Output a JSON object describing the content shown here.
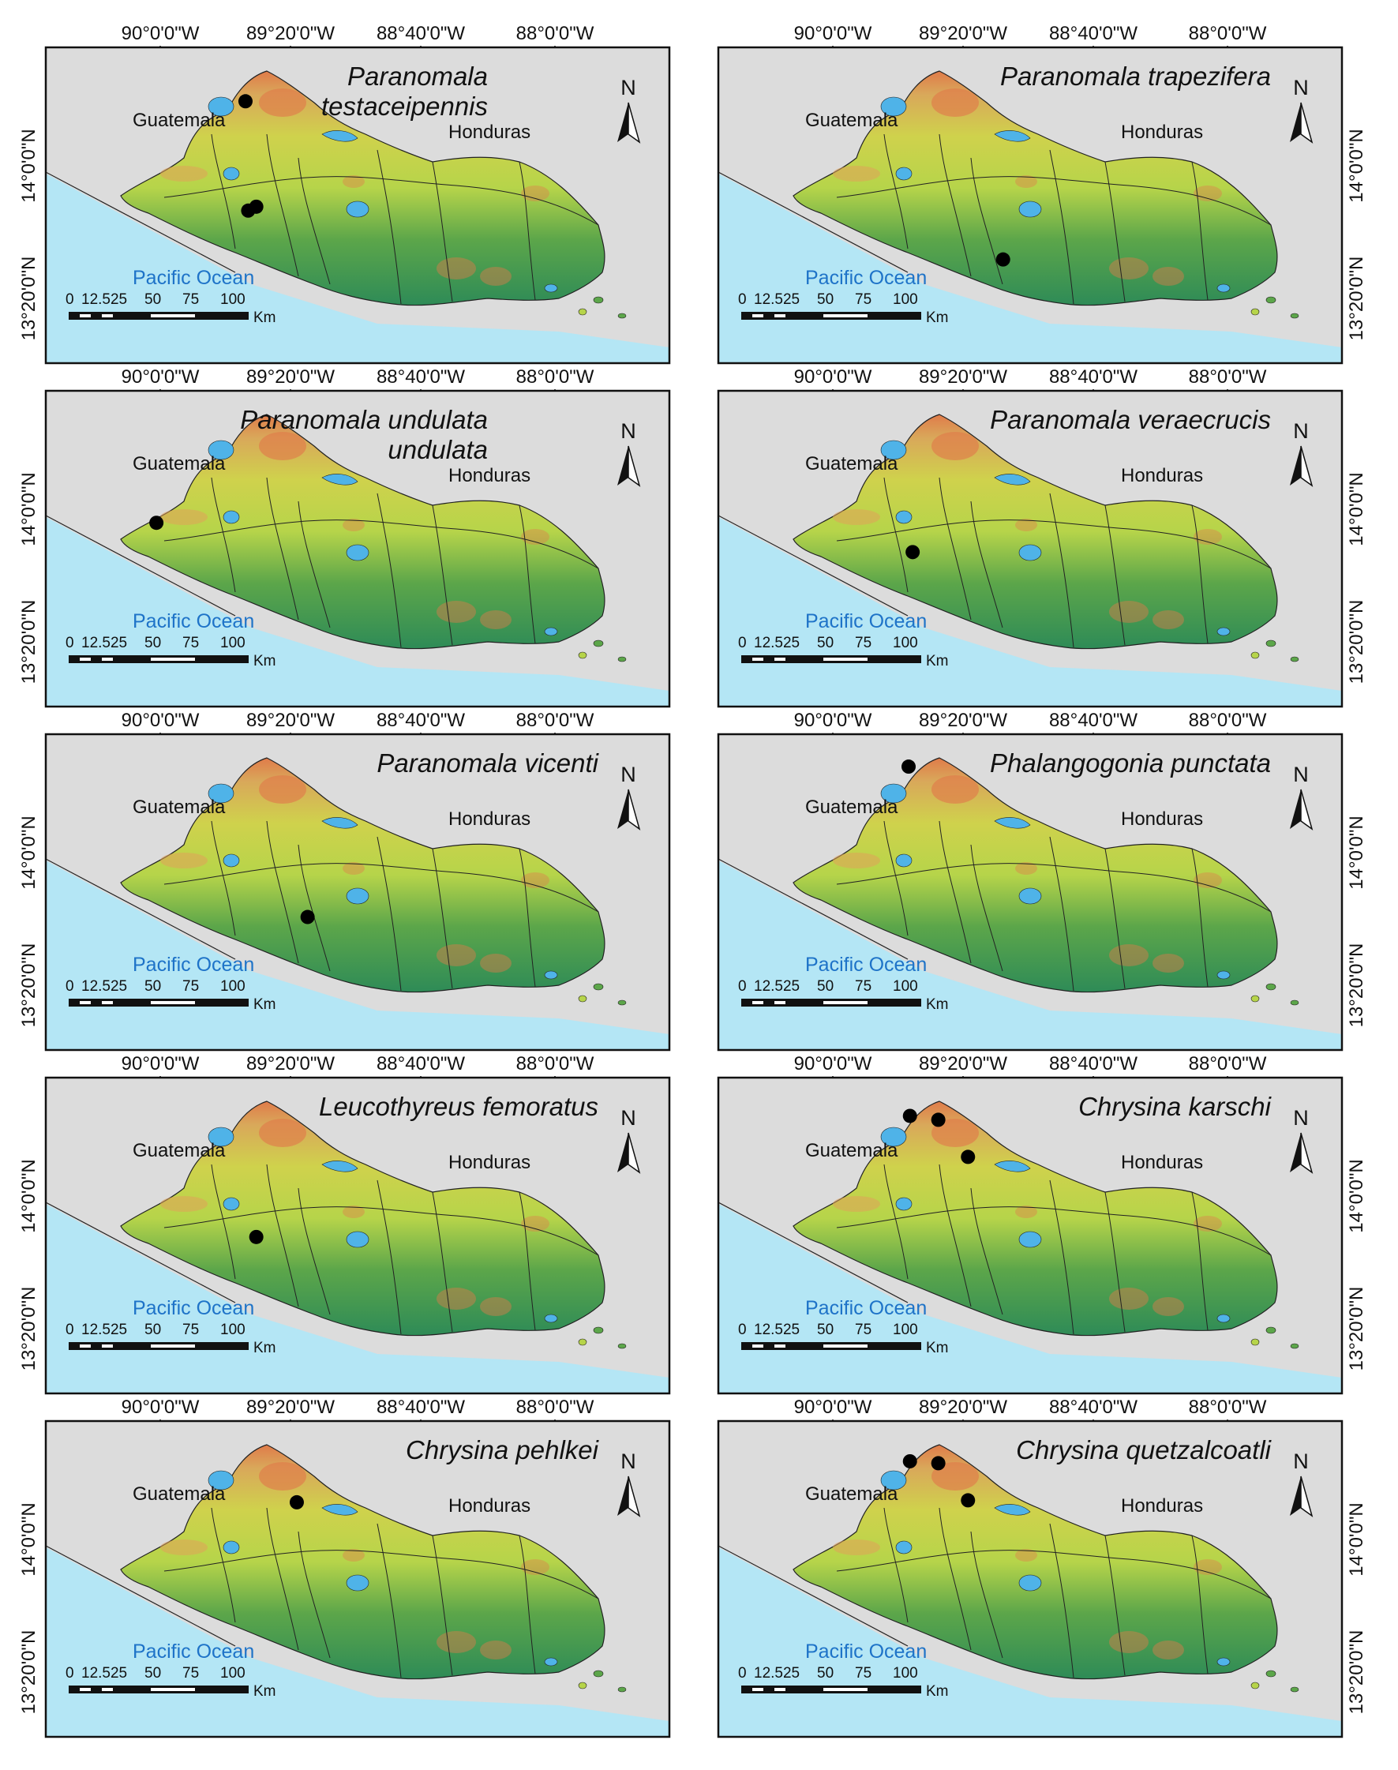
{
  "figure": {
    "lon_ticks": [
      "90°0'0\"W",
      "89°20'0\"W",
      "88°40'0\"W",
      "88°0'0\"W"
    ],
    "lat_ticks": [
      "14°0'0\"N",
      "13°20'0\"N"
    ],
    "labels": {
      "guatemala": "Guatemala",
      "honduras": "Honduras",
      "ocean": "Pacific Ocean",
      "north": "N",
      "scale_ticks": [
        "0",
        "12.5",
        "25",
        "50",
        "75",
        "100"
      ],
      "scale_unit": "Km"
    },
    "colors": {
      "sea": "#b4e6f5",
      "land_outside": "#dcdcdc",
      "lowland": "#2e8b57",
      "midland": "#b6d44a",
      "highland": "#d9c25a",
      "peaks": "#e07b4a",
      "lake": "#4fb3e8",
      "record": "#000000"
    },
    "panels": [
      {
        "species": [
          "Paranomala",
          "testaceipennis"
        ],
        "records": [
          [
            89.31,
            14.29
          ],
          [
            89.29,
            13.73
          ],
          [
            89.23,
            13.75
          ]
        ]
      },
      {
        "species": [
          "Paranomala trapezifera"
        ],
        "records": [
          [
            88.68,
            13.48
          ]
        ]
      },
      {
        "species": [
          "Paranomala undulata",
          "undulata"
        ],
        "records": [
          [
            89.97,
            13.89
          ]
        ]
      },
      {
        "species": [
          "Paranomala veraecrucis"
        ],
        "records": [
          [
            89.35,
            13.74
          ]
        ]
      },
      {
        "species": [
          "Paranomala vicenti"
        ],
        "records": [
          [
            88.85,
            13.63
          ]
        ]
      },
      {
        "species": [
          "Phalangogonia punctata"
        ],
        "records": [
          [
            89.38,
            14.4
          ]
        ]
      },
      {
        "species": [
          "Chrysina karschi"
        ],
        "records": [
          [
            89.37,
            14.37
          ],
          [
            89.16,
            14.35
          ],
          [
            88.94,
            14.16
          ]
        ]
      },
      {
        "species": [
          "Chrysina pehlkei"
        ],
        "records": [
          [
            88.93,
            14.15
          ]
        ]
      },
      {
        "species": [
          "Chrysina pehlkei"
        ],
        "records": [],
        "hidden": true
      },
      {
        "species": [
          "Chrysina quetzalcoatli"
        ],
        "records": [
          [
            89.37,
            14.36
          ],
          [
            89.16,
            14.35
          ],
          [
            88.94,
            14.16
          ]
        ]
      }
    ]
  },
  "panel_order_note_free": true
}
